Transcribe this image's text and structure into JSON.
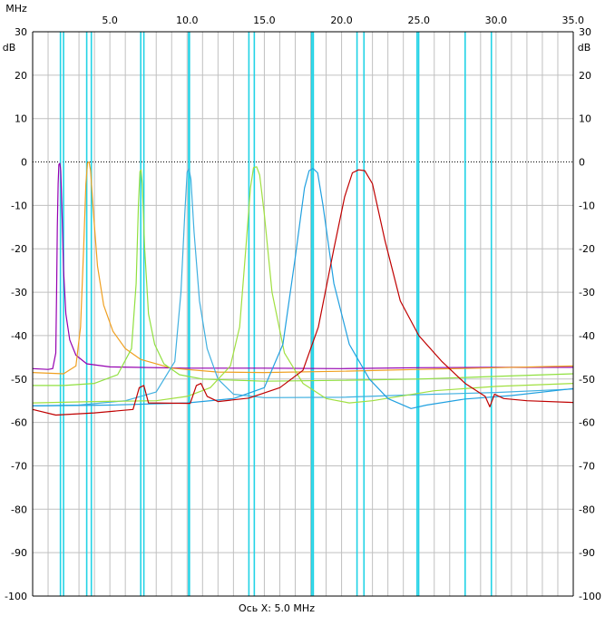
{
  "chart_data": {
    "type": "line",
    "x_unit": "MHz",
    "y_unit": "dB",
    "x_caption": "Ось X: 5.0 MHz",
    "xlim": [
      0,
      35
    ],
    "ylim": [
      -100,
      30
    ],
    "x_ticks": [
      {
        "value": 5,
        "label": "5.0"
      },
      {
        "value": 10,
        "label": "10.0"
      },
      {
        "value": 15,
        "label": "15.0"
      },
      {
        "value": 20,
        "label": "20.0"
      },
      {
        "value": 25,
        "label": "25.0"
      },
      {
        "value": 30,
        "label": "30.0"
      },
      {
        "value": 35,
        "label": "35.0"
      }
    ],
    "y_ticks": [
      {
        "value": 30,
        "label": "30"
      },
      {
        "value": 20,
        "label": "20"
      },
      {
        "value": 10,
        "label": "10"
      },
      {
        "value": 0,
        "label": "0"
      },
      {
        "value": -10,
        "label": "-10"
      },
      {
        "value": -20,
        "label": "-20"
      },
      {
        "value": -30,
        "label": "-30"
      },
      {
        "value": -40,
        "label": "-40"
      },
      {
        "value": -50,
        "label": "-50"
      },
      {
        "value": -60,
        "label": "-60"
      },
      {
        "value": -70,
        "label": "-70"
      },
      {
        "value": -80,
        "label": "-80"
      },
      {
        "value": -90,
        "label": "-90"
      },
      {
        "value": -100,
        "label": "-100"
      }
    ],
    "reference_line_db": 0,
    "grid": true,
    "band_markers_mhz": [
      1.8,
      2.0,
      3.5,
      3.8,
      7.0,
      7.2,
      10.1,
      10.15,
      14.0,
      14.35,
      18.07,
      18.17,
      21.0,
      21.45,
      24.89,
      24.99,
      28.0,
      29.7
    ],
    "colors": {
      "grid": "#c0c0c0",
      "markers": "#22d3e6",
      "reference": "#000000"
    },
    "series": [
      {
        "color": "#9400b0",
        "points": [
          [
            0.0,
            -47.6
          ],
          [
            1.0,
            -47.8
          ],
          [
            1.3,
            -47.6
          ],
          [
            1.5,
            -44
          ],
          [
            1.55,
            -30
          ],
          [
            1.6,
            -15
          ],
          [
            1.65,
            -5
          ],
          [
            1.7,
            -0.6
          ],
          [
            1.76,
            -0.3
          ],
          [
            1.82,
            -2
          ],
          [
            1.9,
            -12
          ],
          [
            2.0,
            -25
          ],
          [
            2.15,
            -35
          ],
          [
            2.4,
            -41
          ],
          [
            2.8,
            -44.5
          ],
          [
            3.5,
            -46.5
          ],
          [
            5,
            -47.2
          ],
          [
            10,
            -47.5
          ],
          [
            15,
            -47.5
          ],
          [
            20,
            -47.6
          ],
          [
            25,
            -47.4
          ],
          [
            30,
            -47.3
          ],
          [
            35,
            -47.3
          ]
        ]
      },
      {
        "color": "#f0a020",
        "points": [
          [
            0.0,
            -48.5
          ],
          [
            2.0,
            -48.8
          ],
          [
            2.8,
            -47
          ],
          [
            3.1,
            -38
          ],
          [
            3.3,
            -20
          ],
          [
            3.45,
            -5
          ],
          [
            3.55,
            -0.2
          ],
          [
            3.65,
            0
          ],
          [
            3.75,
            -2
          ],
          [
            3.9,
            -10
          ],
          [
            4.2,
            -24
          ],
          [
            4.6,
            -33
          ],
          [
            5.2,
            -39
          ],
          [
            6,
            -43
          ],
          [
            7,
            -45.5
          ],
          [
            9,
            -47.5
          ],
          [
            12,
            -48.4
          ],
          [
            15,
            -48.5
          ],
          [
            20,
            -48.2
          ],
          [
            25,
            -47.8
          ],
          [
            30,
            -47.4
          ],
          [
            35,
            -47.0
          ]
        ]
      },
      {
        "color": "#90e040",
        "points": [
          [
            0.0,
            -51.5
          ],
          [
            2,
            -51.5
          ],
          [
            4,
            -51
          ],
          [
            5.5,
            -49
          ],
          [
            6.4,
            -43
          ],
          [
            6.7,
            -28
          ],
          [
            6.85,
            -10
          ],
          [
            6.95,
            -2.2
          ],
          [
            7.02,
            -1.8
          ],
          [
            7.1,
            -5
          ],
          [
            7.25,
            -20
          ],
          [
            7.5,
            -35
          ],
          [
            7.9,
            -42
          ],
          [
            8.5,
            -46.5
          ],
          [
            9.5,
            -49
          ],
          [
            11,
            -50
          ],
          [
            15,
            -50.5
          ],
          [
            20,
            -50.3
          ],
          [
            25,
            -50
          ],
          [
            30,
            -49.4
          ],
          [
            35,
            -48.8
          ]
        ]
      },
      {
        "color": "#40b0e0",
        "points": [
          [
            0.0,
            -56.2
          ],
          [
            3,
            -56
          ],
          [
            6,
            -55
          ],
          [
            8,
            -53
          ],
          [
            9.2,
            -46
          ],
          [
            9.6,
            -30
          ],
          [
            9.85,
            -12
          ],
          [
            10.0,
            -2.4
          ],
          [
            10.12,
            -1.5
          ],
          [
            10.25,
            -4
          ],
          [
            10.45,
            -16
          ],
          [
            10.8,
            -32
          ],
          [
            11.3,
            -43
          ],
          [
            12,
            -50
          ],
          [
            13,
            -53.5
          ],
          [
            15,
            -54.3
          ],
          [
            20,
            -54.2
          ],
          [
            25,
            -53.6
          ],
          [
            30,
            -53.1
          ],
          [
            35,
            -52.3
          ]
        ]
      },
      {
        "color": "#a0e040",
        "points": [
          [
            0.0,
            -55.5
          ],
          [
            4,
            -55.2
          ],
          [
            8,
            -55
          ],
          [
            10,
            -54
          ],
          [
            11.5,
            -52
          ],
          [
            12.8,
            -47
          ],
          [
            13.4,
            -38
          ],
          [
            13.8,
            -20
          ],
          [
            14.1,
            -6
          ],
          [
            14.3,
            -1.3
          ],
          [
            14.5,
            -1.1
          ],
          [
            14.7,
            -3
          ],
          [
            15.0,
            -12
          ],
          [
            15.5,
            -30
          ],
          [
            16.3,
            -44
          ],
          [
            17.5,
            -51
          ],
          [
            19,
            -54.5
          ],
          [
            20.5,
            -55.5
          ],
          [
            22,
            -55
          ],
          [
            26,
            -52.7
          ],
          [
            30,
            -51.7
          ],
          [
            35,
            -51
          ]
        ]
      },
      {
        "color": "#20a0e0",
        "points": [
          [
            0.0,
            -56.2
          ],
          [
            5,
            -56
          ],
          [
            10,
            -55.5
          ],
          [
            13,
            -54.5
          ],
          [
            15,
            -52
          ],
          [
            16.2,
            -42
          ],
          [
            17.0,
            -22
          ],
          [
            17.6,
            -6
          ],
          [
            17.9,
            -2
          ],
          [
            18.15,
            -1.5
          ],
          [
            18.45,
            -2.5
          ],
          [
            18.8,
            -10
          ],
          [
            19.5,
            -28
          ],
          [
            20.5,
            -42
          ],
          [
            21.8,
            -50
          ],
          [
            23,
            -54.5
          ],
          [
            24.5,
            -56.8
          ],
          [
            25.5,
            -56
          ],
          [
            28,
            -54.6
          ],
          [
            31,
            -53.8
          ],
          [
            35,
            -52.2
          ]
        ]
      },
      {
        "color": "#c00000",
        "points": [
          [
            0.0,
            -57
          ],
          [
            1.5,
            -58.3
          ],
          [
            4,
            -57.8
          ],
          [
            6.5,
            -57
          ],
          [
            6.9,
            -52
          ],
          [
            7.2,
            -51.5
          ],
          [
            7.5,
            -55.5
          ],
          [
            10.2,
            -55.6
          ],
          [
            10.6,
            -51.5
          ],
          [
            10.9,
            -51
          ],
          [
            11.3,
            -54
          ],
          [
            12,
            -55.2
          ],
          [
            14,
            -54.4
          ],
          [
            16,
            -52
          ],
          [
            17.5,
            -48
          ],
          [
            18.5,
            -38
          ],
          [
            19.5,
            -20
          ],
          [
            20.2,
            -8
          ],
          [
            20.7,
            -2.5
          ],
          [
            21.1,
            -1.8
          ],
          [
            21.5,
            -2
          ],
          [
            22.0,
            -5
          ],
          [
            22.8,
            -18
          ],
          [
            23.8,
            -32
          ],
          [
            25.0,
            -40
          ],
          [
            26.5,
            -46
          ],
          [
            28.0,
            -51
          ],
          [
            29.3,
            -54
          ],
          [
            29.6,
            -56.4
          ],
          [
            29.9,
            -53.5
          ],
          [
            30.5,
            -54.5
          ],
          [
            32,
            -55
          ],
          [
            35,
            -55.4
          ]
        ]
      }
    ]
  }
}
